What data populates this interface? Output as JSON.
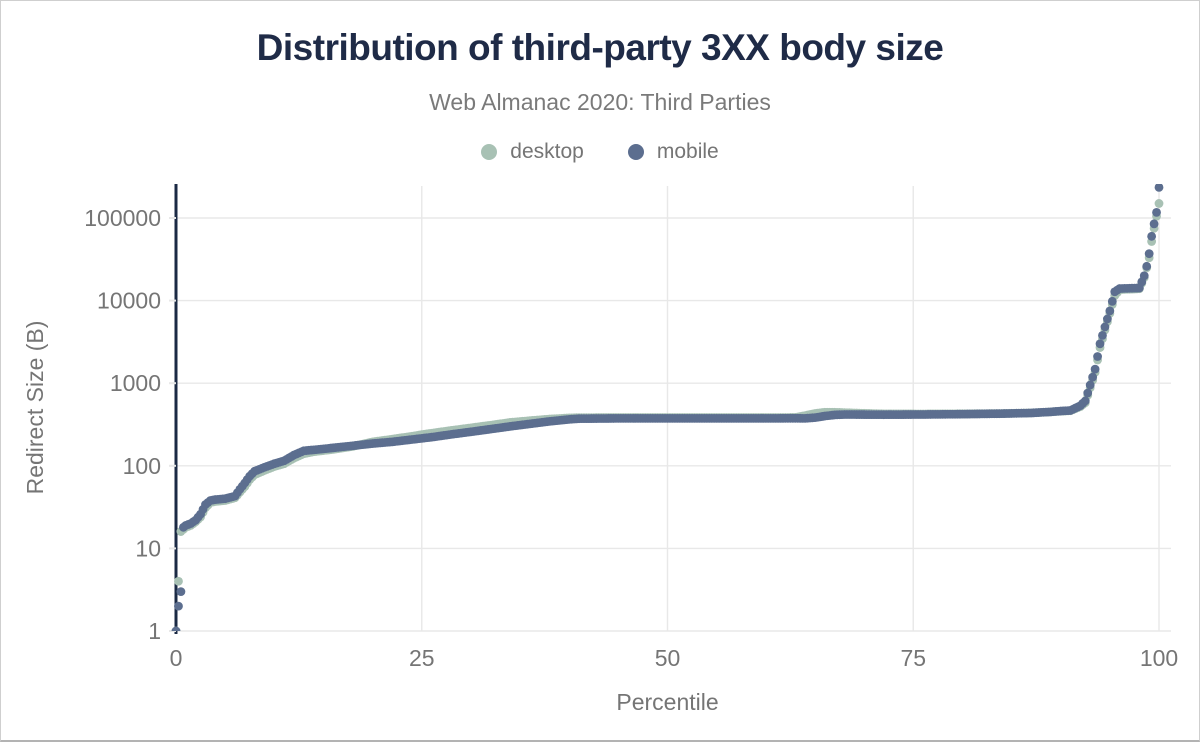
{
  "header": {
    "title": "Distribution of third-party 3XX body size",
    "subtitle": "Web Almanac 2020: Third Parties"
  },
  "legend": {
    "items": [
      {
        "label": "desktop",
        "color": "#a8c1b4"
      },
      {
        "label": "mobile",
        "color": "#5c6e8f"
      }
    ]
  },
  "colors": {
    "title": "#1f2b47",
    "subtitle": "#7a7a7a",
    "axis_line": "#1b2a44",
    "grid": "#e8e8e8",
    "tick_text": "#757575",
    "background": "#ffffff"
  },
  "chart_data": {
    "type": "scatter",
    "title": "Distribution of third-party 3XX body size",
    "subtitle": "Web Almanac 2020: Third Parties",
    "xlabel": "Percentile",
    "ylabel": "Redirect Size (B)",
    "x_ticks": [
      0,
      25,
      50,
      75,
      100
    ],
    "x_range": [
      0,
      100
    ],
    "y_scale": "log",
    "y_ticks": [
      1,
      10,
      100,
      1000,
      10000,
      100000
    ],
    "y_range": [
      1,
      250000
    ],
    "grid": true,
    "legend_position": "top",
    "interp_step": 0.25,
    "marker_radius": 4.4,
    "series": [
      {
        "name": "desktop",
        "color": "#a8c1b4",
        "points": [
          [
            0,
            1
          ],
          [
            0.25,
            4
          ],
          [
            0.5,
            16
          ],
          [
            0.75,
            17
          ],
          [
            1,
            18
          ],
          [
            1.5,
            19
          ],
          [
            2,
            21
          ],
          [
            2.5,
            24
          ],
          [
            3,
            31
          ],
          [
            3.5,
            36
          ],
          [
            4,
            37
          ],
          [
            5,
            38
          ],
          [
            6,
            41
          ],
          [
            6.5,
            48
          ],
          [
            7,
            56
          ],
          [
            7.5,
            68
          ],
          [
            8,
            78
          ],
          [
            9,
            88
          ],
          [
            10,
            98
          ],
          [
            11,
            106
          ],
          [
            12,
            124
          ],
          [
            13,
            140
          ],
          [
            14,
            148
          ],
          [
            16,
            158
          ],
          [
            18,
            172
          ],
          [
            20,
            195
          ],
          [
            22,
            210
          ],
          [
            24,
            228
          ],
          [
            25,
            238
          ],
          [
            26,
            248
          ],
          [
            28,
            268
          ],
          [
            30,
            288
          ],
          [
            32,
            310
          ],
          [
            34,
            335
          ],
          [
            36,
            352
          ],
          [
            38,
            368
          ],
          [
            40,
            380
          ],
          [
            41,
            383
          ],
          [
            45,
            384
          ],
          [
            50,
            384
          ],
          [
            55,
            384
          ],
          [
            60,
            384
          ],
          [
            63,
            385
          ],
          [
            64,
            405
          ],
          [
            65,
            430
          ],
          [
            66,
            445
          ],
          [
            67,
            445
          ],
          [
            68,
            440
          ],
          [
            70,
            432
          ],
          [
            72,
            425
          ],
          [
            76,
            424
          ],
          [
            80,
            426
          ],
          [
            84,
            430
          ],
          [
            87,
            437
          ],
          [
            89,
            450
          ],
          [
            90,
            458
          ],
          [
            91,
            465
          ],
          [
            92,
            520
          ],
          [
            92.5,
            580
          ],
          [
            93,
            880
          ],
          [
            93.5,
            1350
          ],
          [
            94,
            2700
          ],
          [
            94.5,
            4400
          ],
          [
            95,
            7000
          ],
          [
            95.5,
            11500
          ],
          [
            96,
            13600
          ],
          [
            98,
            13900
          ],
          [
            98.5,
            19000
          ],
          [
            98.75,
            25000
          ],
          [
            99,
            33000
          ],
          [
            99.25,
            52000
          ],
          [
            99.5,
            75000
          ],
          [
            99.75,
            105000
          ],
          [
            100,
            150000
          ]
        ]
      },
      {
        "name": "mobile",
        "color": "#5c6e8f",
        "points": [
          [
            0,
            1
          ],
          [
            0.25,
            2
          ],
          [
            0.5,
            3
          ],
          [
            0.75,
            18
          ],
          [
            1,
            19
          ],
          [
            1.5,
            20
          ],
          [
            2,
            22
          ],
          [
            2.5,
            26
          ],
          [
            3,
            34
          ],
          [
            3.5,
            38
          ],
          [
            4,
            39
          ],
          [
            5,
            40
          ],
          [
            6,
            43
          ],
          [
            6.5,
            52
          ],
          [
            7,
            62
          ],
          [
            7.5,
            75
          ],
          [
            8,
            86
          ],
          [
            9,
            96
          ],
          [
            10,
            106
          ],
          [
            11,
            115
          ],
          [
            12,
            135
          ],
          [
            13,
            152
          ],
          [
            14,
            156
          ],
          [
            16,
            165
          ],
          [
            18,
            175
          ],
          [
            20,
            186
          ],
          [
            22,
            195
          ],
          [
            24,
            208
          ],
          [
            25,
            215
          ],
          [
            26,
            222
          ],
          [
            28,
            240
          ],
          [
            30,
            258
          ],
          [
            32,
            278
          ],
          [
            34,
            300
          ],
          [
            36,
            322
          ],
          [
            38,
            345
          ],
          [
            40,
            365
          ],
          [
            41,
            372
          ],
          [
            45,
            375
          ],
          [
            50,
            375
          ],
          [
            55,
            375
          ],
          [
            60,
            375
          ],
          [
            63,
            376
          ],
          [
            64,
            375
          ],
          [
            65,
            383
          ],
          [
            66,
            400
          ],
          [
            67,
            413
          ],
          [
            68,
            418
          ],
          [
            72,
            416
          ],
          [
            76,
            418
          ],
          [
            80,
            422
          ],
          [
            84,
            428
          ],
          [
            87,
            436
          ],
          [
            89,
            450
          ],
          [
            90,
            460
          ],
          [
            91,
            468
          ],
          [
            92,
            535
          ],
          [
            92.5,
            610
          ],
          [
            93,
            950
          ],
          [
            93.5,
            1480
          ],
          [
            94,
            3000
          ],
          [
            94.5,
            4800
          ],
          [
            95,
            7500
          ],
          [
            95.5,
            12800
          ],
          [
            96,
            14000
          ],
          [
            98,
            14200
          ],
          [
            98.5,
            20000
          ],
          [
            98.75,
            26000
          ],
          [
            99,
            37000
          ],
          [
            99.25,
            60000
          ],
          [
            99.5,
            85000
          ],
          [
            99.75,
            117000
          ],
          [
            100,
            235000
          ]
        ]
      }
    ]
  }
}
